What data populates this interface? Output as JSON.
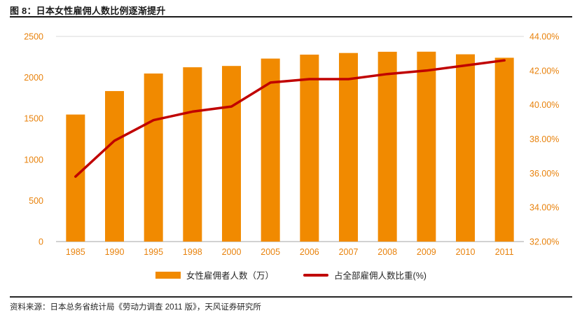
{
  "page": {
    "title": "图 8：日本女性雇佣人数比例逐渐提升",
    "source": "资料来源：日本总务省统计局《劳动力调查 2011 版》，天风证券研究所"
  },
  "colors": {
    "bar": "#F18A00",
    "line": "#C00000",
    "axis_label": "#E8820C",
    "grid": "#D9D9D9",
    "axis_line": "#A6A6A6",
    "text": "#262626"
  },
  "chart_data": {
    "type": "bar+line combo",
    "categories": [
      "1985",
      "1990",
      "1995",
      "1998",
      "2000",
      "2005",
      "2006",
      "2007",
      "2008",
      "2009",
      "2010",
      "2011"
    ],
    "series": [
      {
        "name": "女性雇佣者人数（万）",
        "type": "bar",
        "axis": "left",
        "values": [
          1548,
          1834,
          2048,
          2124,
          2140,
          2230,
          2278,
          2298,
          2313,
          2314,
          2282,
          2240
        ]
      },
      {
        "name": "占全部雇佣人数比重(%)",
        "type": "line",
        "axis": "right",
        "values": [
          35.8,
          37.9,
          39.1,
          39.6,
          39.9,
          41.3,
          41.5,
          41.5,
          41.8,
          42.0,
          42.3,
          42.6
        ]
      }
    ],
    "left_axis": {
      "min": 0,
      "max": 2500,
      "step": 500,
      "ticks": [
        "0",
        "500",
        "1000",
        "1500",
        "2000",
        "2500"
      ]
    },
    "right_axis": {
      "min": 32,
      "max": 44,
      "step": 2,
      "ticks": [
        "32.00%",
        "34.00%",
        "36.00%",
        "38.00%",
        "40.00%",
        "42.00%",
        "44.00%"
      ]
    },
    "grid": "top border only",
    "legend_position": "bottom-center"
  }
}
